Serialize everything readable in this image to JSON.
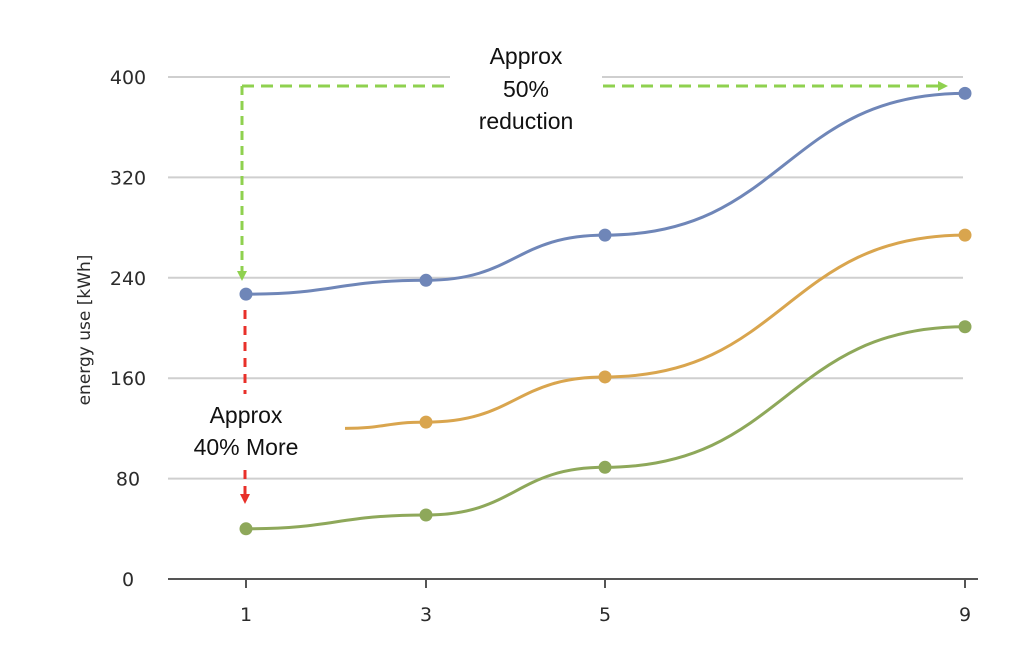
{
  "chart_data": {
    "type": "line",
    "title": "",
    "xlabel": "",
    "ylabel": "energy use [kWh]",
    "x": [
      1,
      3,
      5,
      9
    ],
    "x_ticks": [
      "1",
      "3",
      "5",
      "9"
    ],
    "y_ticks": [
      "0",
      "80",
      "160",
      "240",
      "320",
      "400"
    ],
    "ylim": [
      0,
      400
    ],
    "grid": true,
    "series": [
      {
        "color": "#6f86b8",
        "x": [
          1,
          3,
          5,
          9
        ],
        "values": [
          227,
          238,
          274,
          387
        ]
      },
      {
        "color": "#d9a54e",
        "x": [
          2.1,
          3,
          5,
          9
        ],
        "values": [
          120,
          125,
          161,
          274
        ]
      },
      {
        "color": "#8ea85a",
        "x": [
          1,
          3,
          5,
          9
        ],
        "values": [
          40,
          51,
          89,
          201
        ]
      }
    ],
    "annotations": [
      {
        "lines": [
          "Approx",
          "50%",
          "reduction"
        ],
        "arrow_color": "#8fd14f"
      },
      {
        "lines": [
          "Approx",
          "40% More"
        ],
        "arrow_color": "#e8302a"
      }
    ]
  }
}
